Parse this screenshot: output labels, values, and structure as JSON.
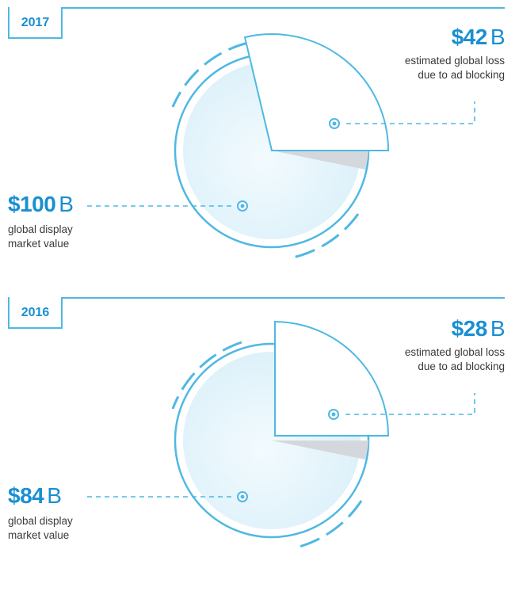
{
  "chart_data": [
    {
      "type": "pie",
      "year_label": "2017",
      "market_value": 100,
      "loss_value": 42,
      "market_value_label": "$100",
      "loss_value_label": "$42",
      "unit": "B",
      "market_caption_line1": "global display",
      "market_caption_line2": "market value",
      "loss_caption_line1": "estimated global loss",
      "loss_caption_line2": "due to ad blocking"
    },
    {
      "type": "pie",
      "year_label": "2016",
      "market_value": 84,
      "loss_value": 28,
      "market_value_label": "$84",
      "loss_value_label": "$28",
      "unit": "B",
      "market_caption_line1": "global display",
      "market_caption_line2": "market value",
      "loss_caption_line1": "estimated global loss",
      "loss_caption_line2": "due to ad blocking"
    }
  ],
  "colors": {
    "accent": "#1a8fd2",
    "line": "#4fb8e3",
    "fill_light": "#e6f5fc",
    "shadow": "#d4d8dc"
  }
}
